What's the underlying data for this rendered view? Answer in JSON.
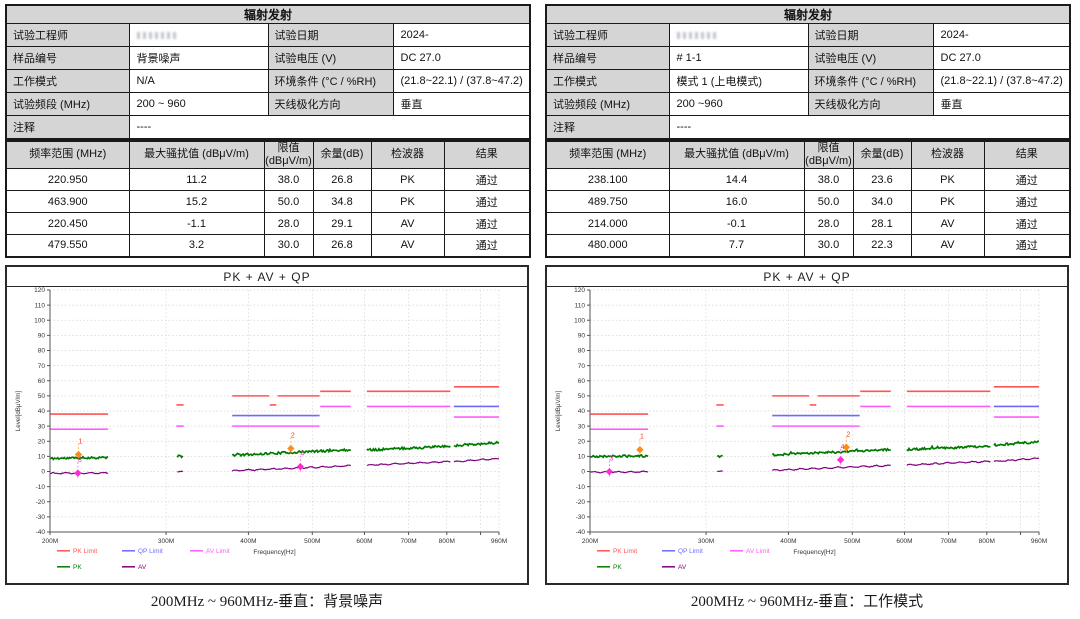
{
  "colors": {
    "table_label_bg": "#d5d5d5",
    "border": "#1a1a1a",
    "pk_limit": "#ff5552",
    "qp_limit": "#6a6aff",
    "av_limit": "#ff5cff",
    "pk_trace": "#007a00",
    "av_trace": "#7d007d"
  },
  "panels": [
    {
      "info": {
        "title": "辐射发射",
        "rows": [
          {
            "l1": "试验工程师",
            "v1": "",
            "redacted": true,
            "l2": "试验日期",
            "v2": "2024-"
          },
          {
            "l1": "样品编号",
            "v1": "背景噪声",
            "l2": "试验电压  (V)",
            "v2": "DC 27.0"
          },
          {
            "l1": "工作模式",
            "v1": "N/A",
            "l2": "环境条件  (°C / %RH)",
            "v2": "(21.8~22.1) / (37.8~47.2)"
          },
          {
            "l1": "试验频段  (MHz)",
            "v1": "200 ~ 960",
            "l2": "天线极化方向",
            "v2": "垂直"
          },
          {
            "l1": "注释",
            "v1": "----",
            "span": true
          }
        ]
      },
      "results": {
        "headers": [
          "频率范围  (MHz)",
          "最大骚扰值  (dBμV/m)",
          "限值\n(dBμV/m)",
          "余量(dB)",
          "检波器",
          "结果"
        ],
        "rows": [
          [
            "220.950",
            "11.2",
            "38.0",
            "26.8",
            "PK",
            "通过"
          ],
          [
            "463.900",
            "15.2",
            "50.0",
            "34.8",
            "PK",
            "通过"
          ],
          [
            "220.450",
            "-1.1",
            "28.0",
            "29.1",
            "AV",
            "通过"
          ],
          [
            "479.550",
            "3.2",
            "30.0",
            "26.8",
            "AV",
            "通过"
          ]
        ]
      },
      "caption": "200MHz ~ 960MHz-垂直：背景噪声"
    },
    {
      "info": {
        "title": "辐射发射",
        "rows": [
          {
            "l1": "试验工程师",
            "v1": "",
            "redacted": true,
            "l2": "试验日期",
            "v2": "2024-"
          },
          {
            "l1": "样品编号",
            "v1": "# 1-1",
            "l2": "试验电压  (V)",
            "v2": "DC 27.0"
          },
          {
            "l1": "工作模式",
            "v1": "模式 1 (上电模式)",
            "l2": "环境条件  (°C / %RH)",
            "v2": "(21.8~22.1) / (37.8~47.2)"
          },
          {
            "l1": "试验频段  (MHz)",
            "v1": "200 ~960",
            "l2": "天线极化方向",
            "v2": "垂直"
          },
          {
            "l1": "注释",
            "v1": "----",
            "span": true
          }
        ]
      },
      "results": {
        "headers": [
          "频率范围  (MHz)",
          "最大骚扰值  (dBμV/m)",
          "限值\n(dBμV/m)",
          "余量(dB)",
          "检波器",
          "结果"
        ],
        "rows": [
          [
            "238.100",
            "14.4",
            "38.0",
            "23.6",
            "PK",
            "通过"
          ],
          [
            "489.750",
            "16.0",
            "50.0",
            "34.0",
            "PK",
            "通过"
          ],
          [
            "214.000",
            "-0.1",
            "28.0",
            "28.1",
            "AV",
            "通过"
          ],
          [
            "480.000",
            "7.7",
            "30.0",
            "22.3",
            "AV",
            "通过"
          ]
        ]
      },
      "caption": "200MHz ~ 960MHz-垂直：工作模式"
    }
  ],
  "chart_data": [
    {
      "type": "line",
      "title": "PK + AV + QP",
      "xlabel": "Frequency[Hz]",
      "ylabel": "Level[dBµV/m]",
      "xscale": "log",
      "xlim_mhz": [
        200,
        960
      ],
      "ylim": [
        -40,
        120
      ],
      "ytick_step": 10,
      "xticks": [
        {
          "mhz": 200,
          "label": "200M"
        },
        {
          "mhz": 300,
          "label": "300M"
        },
        {
          "mhz": 400,
          "label": "400M"
        },
        {
          "mhz": 500,
          "label": "500M"
        },
        {
          "mhz": 600,
          "label": "600M"
        },
        {
          "mhz": 700,
          "label": "700M"
        },
        {
          "mhz": 800,
          "label": "800M"
        },
        {
          "mhz": 900,
          "label": ""
        },
        {
          "mhz": 960,
          "label": "960M"
        }
      ],
      "limit_lines": [
        {
          "name": "PK Limit",
          "color": "#ff5552",
          "segments": [
            [
              200,
              245,
              38
            ],
            [
              311,
              319,
              44
            ],
            [
              378,
              430,
              50
            ],
            [
              431,
              441,
              44
            ],
            [
              443,
              513,
              50
            ],
            [
              514,
              572,
              53
            ],
            [
              605,
              810,
              53
            ],
            [
              820,
              960,
              56
            ]
          ]
        },
        {
          "name": "QP Limit",
          "color": "#6a6aff",
          "segments": [
            [
              378,
              513,
              37
            ],
            [
              820,
              960,
              43
            ]
          ]
        },
        {
          "name": "AV Limit",
          "color": "#ff5cff",
          "segments": [
            [
              200,
              245,
              28
            ],
            [
              311,
              319,
              30
            ],
            [
              378,
              513,
              30
            ],
            [
              514,
              572,
              43
            ],
            [
              605,
              810,
              43
            ],
            [
              820,
              960,
              36
            ]
          ]
        }
      ],
      "traces": [
        {
          "name": "PK",
          "color": "#007a00",
          "noise": 1.5,
          "width": 1.7,
          "seed": 11,
          "bands": [
            [
              200,
              245,
              8.6,
              9.3
            ],
            [
              312,
              318,
              9.9,
              10.1
            ],
            [
              378,
              572,
              10.8,
              14.4
            ],
            [
              605,
              810,
              14.2,
              16.6
            ],
            [
              820,
              960,
              17.0,
              19.2
            ]
          ]
        },
        {
          "name": "AV",
          "color": "#7d007d",
          "noise": 0.5,
          "width": 1.2,
          "seed": 12,
          "bands": [
            [
              200,
              245,
              -1.2,
              -0.9
            ],
            [
              312,
              318,
              -0.3,
              -0.1
            ],
            [
              378,
              572,
              0.5,
              3.8
            ],
            [
              605,
              810,
              4.2,
              6.6
            ],
            [
              820,
              960,
              6.4,
              8.6
            ]
          ]
        }
      ],
      "markers": [
        {
          "n": "1",
          "mhz": 220.95,
          "value": 11.2,
          "color": "#ff8c1a",
          "label_color": "#f04020"
        },
        {
          "n": "2",
          "mhz": 463.9,
          "value": 15.2,
          "color": "#ff8c1a",
          "label_color": "#f04020"
        },
        {
          "n": "3",
          "mhz": 220.45,
          "value": -1.1,
          "color": "#ff2bd6",
          "label_color": "#f030c0"
        },
        {
          "n": "4",
          "mhz": 479.55,
          "value": 3.2,
          "color": "#ff2bd6",
          "label_color": "#f030c0"
        }
      ],
      "legend": [
        "PK Limit",
        "QP Limit",
        "AV Limit",
        "PK",
        "AV"
      ]
    },
    {
      "type": "line",
      "title": "PK + AV + QP",
      "xlabel": "Frequency[Hz]",
      "ylabel": "Level[dBµV/m]",
      "xscale": "log",
      "xlim_mhz": [
        200,
        960
      ],
      "ylim": [
        -40,
        120
      ],
      "ytick_step": 10,
      "xticks": [
        {
          "mhz": 200,
          "label": "200M"
        },
        {
          "mhz": 300,
          "label": "300M"
        },
        {
          "mhz": 400,
          "label": "400M"
        },
        {
          "mhz": 500,
          "label": "500M"
        },
        {
          "mhz": 600,
          "label": "600M"
        },
        {
          "mhz": 700,
          "label": "700M"
        },
        {
          "mhz": 800,
          "label": "800M"
        },
        {
          "mhz": 900,
          "label": ""
        },
        {
          "mhz": 960,
          "label": "960M"
        }
      ],
      "limit_lines": [
        {
          "name": "PK Limit",
          "color": "#ff5552",
          "segments": [
            [
              200,
              245,
              38
            ],
            [
              311,
              319,
              44
            ],
            [
              378,
              430,
              50
            ],
            [
              431,
              441,
              44
            ],
            [
              443,
              513,
              50
            ],
            [
              514,
              572,
              53
            ],
            [
              605,
              810,
              53
            ],
            [
              820,
              960,
              56
            ]
          ]
        },
        {
          "name": "QP Limit",
          "color": "#6a6aff",
          "segments": [
            [
              378,
              513,
              37
            ],
            [
              820,
              960,
              43
            ]
          ]
        },
        {
          "name": "AV Limit",
          "color": "#ff5cff",
          "segments": [
            [
              200,
              245,
              28
            ],
            [
              311,
              319,
              30
            ],
            [
              378,
              513,
              30
            ],
            [
              514,
              572,
              43
            ],
            [
              605,
              810,
              43
            ],
            [
              820,
              960,
              36
            ]
          ]
        }
      ],
      "traces": [
        {
          "name": "PK",
          "color": "#007a00",
          "noise": 1.5,
          "width": 1.7,
          "seed": 21,
          "bands": [
            [
              200,
              245,
              9.9,
              10.4
            ],
            [
              312,
              318,
              10.1,
              10.3
            ],
            [
              378,
              572,
              11.0,
              14.6
            ],
            [
              605,
              810,
              14.5,
              16.8
            ],
            [
              820,
              960,
              17.4,
              19.6
            ]
          ]
        },
        {
          "name": "AV",
          "color": "#7d007d",
          "noise": 0.5,
          "width": 1.2,
          "seed": 22,
          "bands": [
            [
              200,
              245,
              -0.4,
              -0.1
            ],
            [
              312,
              318,
              -0.1,
              0.1
            ],
            [
              378,
              572,
              0.8,
              4.0
            ],
            [
              605,
              810,
              4.3,
              6.8
            ],
            [
              820,
              960,
              6.6,
              8.8
            ]
          ]
        }
      ],
      "markers": [
        {
          "n": "1",
          "mhz": 238.1,
          "value": 14.4,
          "color": "#ff8c1a",
          "label_color": "#f04020"
        },
        {
          "n": "2",
          "mhz": 489.75,
          "value": 16.0,
          "color": "#ff8c1a",
          "label_color": "#f04020"
        },
        {
          "n": "3",
          "mhz": 214.0,
          "value": -0.1,
          "color": "#ff2bd6",
          "label_color": "#f030c0"
        },
        {
          "n": "4",
          "mhz": 480.0,
          "value": 7.7,
          "color": "#ff2bd6",
          "label_color": "#f030c0"
        }
      ],
      "legend": [
        "PK Limit",
        "QP Limit",
        "AV Limit",
        "PK",
        "AV"
      ]
    }
  ]
}
